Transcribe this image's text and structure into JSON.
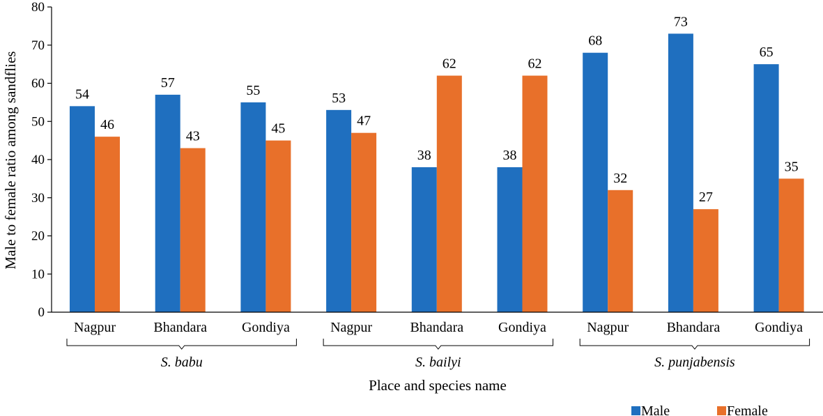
{
  "chart_data": {
    "type": "bar",
    "xlabel": "Place and species name",
    "ylabel": "Male to female ratio among sandflies",
    "ylim": [
      0,
      80
    ],
    "yticks": [
      0,
      10,
      20,
      30,
      40,
      50,
      60,
      70,
      80
    ],
    "grid": false,
    "legend_position": "bottom-right",
    "groups": [
      {
        "name": "S. babu",
        "categories": [
          "Nagpur",
          "Bhandara",
          "Gondiya"
        ]
      },
      {
        "name": "S. bailyi",
        "categories": [
          "Nagpur",
          "Bhandara",
          "Gondiya"
        ]
      },
      {
        "name": "S. punjabensis",
        "categories": [
          "Nagpur",
          "Bhandara",
          "Gondiya"
        ]
      }
    ],
    "categories": [
      "Nagpur",
      "Bhandara",
      "Gondiya",
      "Nagpur",
      "Bhandara",
      "Gondiya",
      "Nagpur",
      "Bhandara",
      "Gondiya"
    ],
    "series": [
      {
        "name": "Male",
        "color": "#1f6fbf",
        "values": [
          54,
          57,
          55,
          53,
          38,
          38,
          68,
          73,
          65
        ]
      },
      {
        "name": "Female",
        "color": "#e8702a",
        "values": [
          46,
          43,
          45,
          47,
          62,
          62,
          32,
          27,
          35
        ]
      }
    ]
  }
}
